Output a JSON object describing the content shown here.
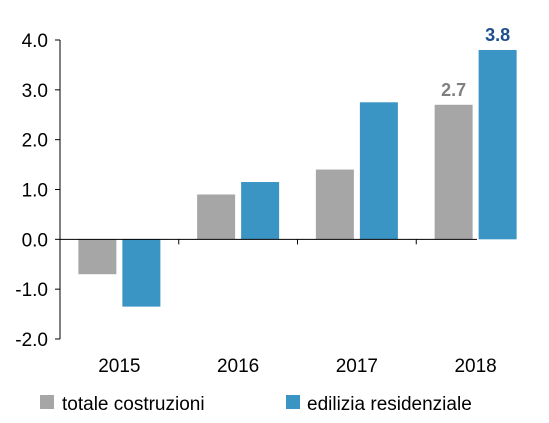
{
  "chart_data": {
    "type": "bar",
    "title": "",
    "xlabel": "",
    "ylabel": "",
    "categories": [
      "2015",
      "2016",
      "2017",
      "2018"
    ],
    "series": [
      {
        "name": "totale costruzioni",
        "color": "#a6a6a6",
        "values": [
          -0.7,
          0.9,
          1.4,
          2.7
        ],
        "labels": [
          "",
          "",
          "",
          "2.7"
        ],
        "label_color": "#808080"
      },
      {
        "name": "edilizia residenziale",
        "color": "#3a95c4",
        "values": [
          -1.35,
          1.15,
          2.75,
          3.8
        ],
        "labels": [
          "",
          "",
          "",
          "3.8"
        ],
        "label_color": "#1f4e8c"
      }
    ],
    "ylim": [
      -2.0,
      4.0
    ],
    "yticks": [
      4.0,
      3.0,
      2.0,
      1.0,
      0.0,
      -1.0,
      -2.0
    ],
    "ytick_labels": [
      "4.0",
      "3.0",
      "2.0",
      "1.0",
      "0.0",
      "-1.0",
      "-2.0"
    ],
    "grid": false,
    "legend_position": "bottom"
  }
}
